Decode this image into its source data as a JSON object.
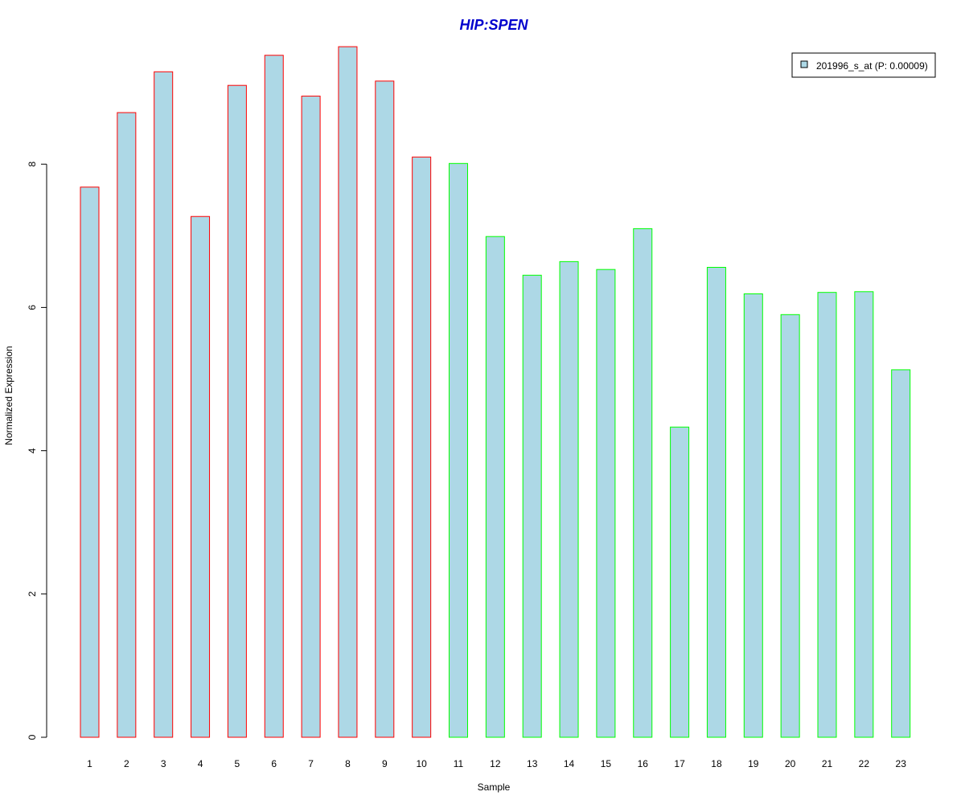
{
  "chart_data": {
    "type": "bar",
    "title": "HIP:SPEN",
    "title_color": "#0000CD",
    "xlabel": "Sample",
    "ylabel": "Normalized Expression",
    "categories": [
      "1",
      "2",
      "3",
      "4",
      "5",
      "6",
      "7",
      "8",
      "9",
      "10",
      "11",
      "12",
      "13",
      "14",
      "15",
      "16",
      "17",
      "18",
      "19",
      "20",
      "21",
      "22",
      "23"
    ],
    "series": [
      {
        "name": "201996_s_at (P: 0.00009)",
        "values": [
          7.68,
          8.72,
          9.29,
          7.27,
          9.1,
          9.52,
          8.95,
          9.64,
          9.16,
          8.1,
          8.01,
          6.99,
          6.45,
          6.64,
          6.53,
          7.1,
          4.33,
          6.56,
          6.19,
          5.9,
          6.21,
          6.22,
          5.13
        ],
        "fill": "#ADD8E6",
        "border_colors": [
          "#FF0000",
          "#FF0000",
          "#FF0000",
          "#FF0000",
          "#FF0000",
          "#FF0000",
          "#FF0000",
          "#FF0000",
          "#FF0000",
          "#FF0000",
          "#00FF00",
          "#00FF00",
          "#00FF00",
          "#00FF00",
          "#00FF00",
          "#00FF00",
          "#00FF00",
          "#00FF00",
          "#00FF00",
          "#00FF00",
          "#00FF00",
          "#00FF00",
          "#00FF00"
        ]
      }
    ],
    "ylim": [
      0,
      9.8
    ],
    "yticks": [
      0,
      2,
      4,
      6,
      8
    ],
    "grid": false,
    "legend_position": "top-right"
  }
}
